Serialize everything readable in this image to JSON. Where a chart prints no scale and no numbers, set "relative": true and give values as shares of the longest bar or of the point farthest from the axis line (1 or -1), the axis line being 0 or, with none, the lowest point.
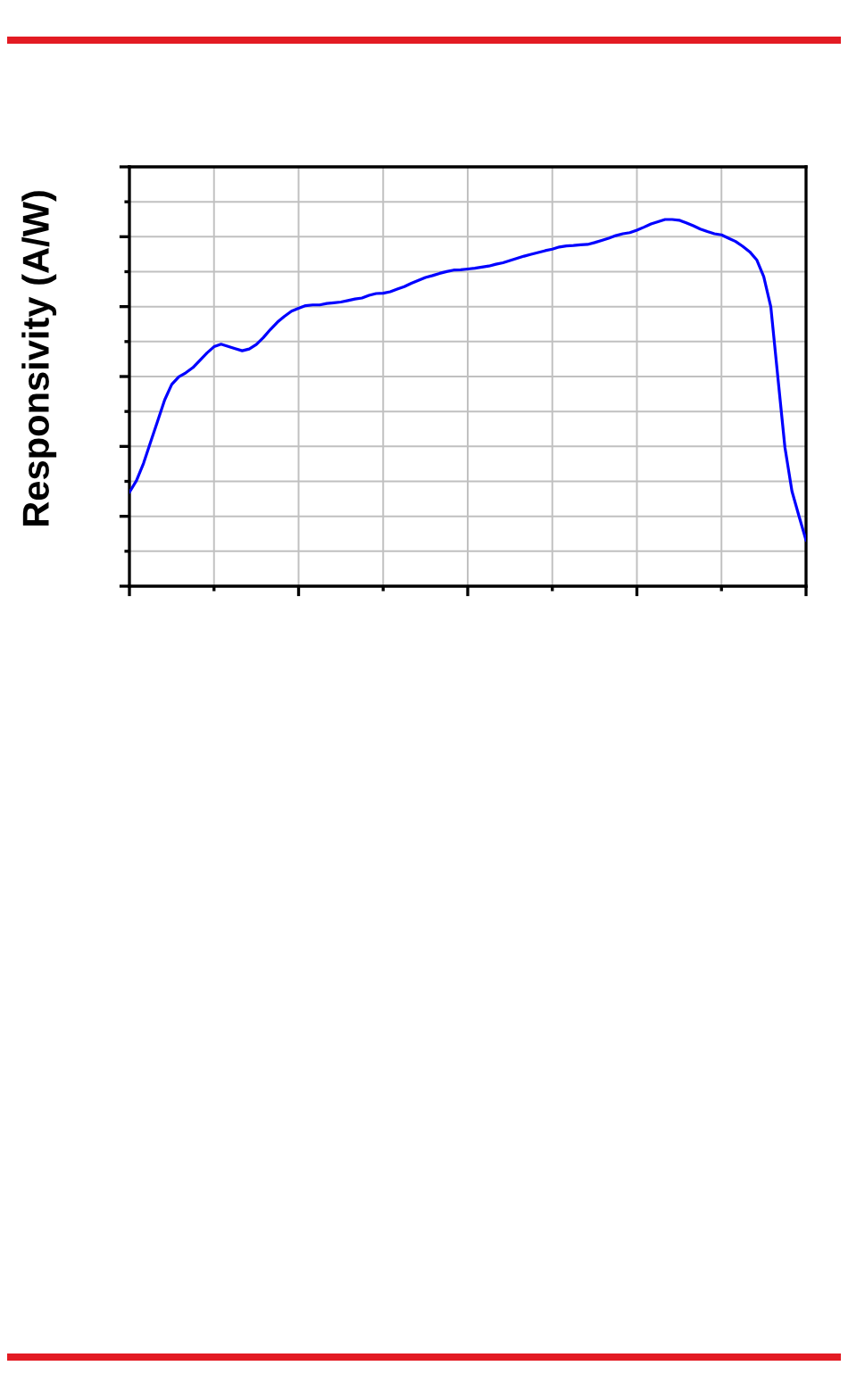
{
  "chart_data": {
    "type": "line",
    "ylabel": "Responsivity (A/W)",
    "relative": true,
    "grid": true,
    "tick_labels": false,
    "line_style": "solid",
    "categories": [
      null,
      null,
      null,
      null,
      null,
      null,
      null,
      null,
      null,
      null,
      null,
      null,
      null,
      null,
      null,
      null,
      null,
      null,
      null,
      null,
      null,
      null,
      null,
      null,
      null,
      null,
      null,
      null,
      null,
      null,
      null,
      null,
      null,
      null,
      null,
      null,
      null,
      null,
      null,
      null,
      null,
      null,
      null,
      null,
      null,
      null,
      null,
      null,
      null,
      null,
      null,
      null,
      null,
      null,
      null,
      null,
      null,
      null,
      null,
      null,
      null,
      null,
      null,
      null,
      null,
      null,
      null,
      null,
      null,
      null,
      null,
      null,
      null,
      null,
      null,
      null,
      null,
      null,
      null,
      null,
      null,
      null,
      null,
      null,
      null,
      null,
      null,
      null,
      null,
      null,
      null,
      null,
      null,
      null,
      null,
      null,
      null
    ],
    "series": [
      {
        "color": "#0000ff",
        "values": [
          0.256,
          0.288,
          0.335,
          0.393,
          0.45,
          0.508,
          0.55,
          0.571,
          0.582,
          0.596,
          0.616,
          0.636,
          0.653,
          0.66,
          0.654,
          0.648,
          0.642,
          0.647,
          0.659,
          0.678,
          0.7,
          0.72,
          0.736,
          0.75,
          0.758,
          0.765,
          0.767,
          0.767,
          0.771,
          0.773,
          0.775,
          0.779,
          0.783,
          0.786,
          0.793,
          0.798,
          0.799,
          0.803,
          0.81,
          0.817,
          0.826,
          0.834,
          0.842,
          0.847,
          0.853,
          0.858,
          0.862,
          0.863,
          0.865,
          0.867,
          0.87,
          0.873,
          0.878,
          0.882,
          0.888,
          0.894,
          0.9,
          0.905,
          0.91,
          0.915,
          0.919,
          0.925,
          0.928,
          0.929,
          0.931,
          0.932,
          0.937,
          0.943,
          0.949,
          0.956,
          0.961,
          0.964,
          0.971,
          0.979,
          0.988,
          0.994,
          1.0,
          1.0,
          0.998,
          0.991,
          0.983,
          0.974,
          0.967,
          0.961,
          0.958,
          0.949,
          0.94,
          0.927,
          0.912,
          0.89,
          0.844,
          0.762,
          0.57,
          0.379,
          0.259,
          0.191,
          0.125
        ]
      }
    ]
  }
}
